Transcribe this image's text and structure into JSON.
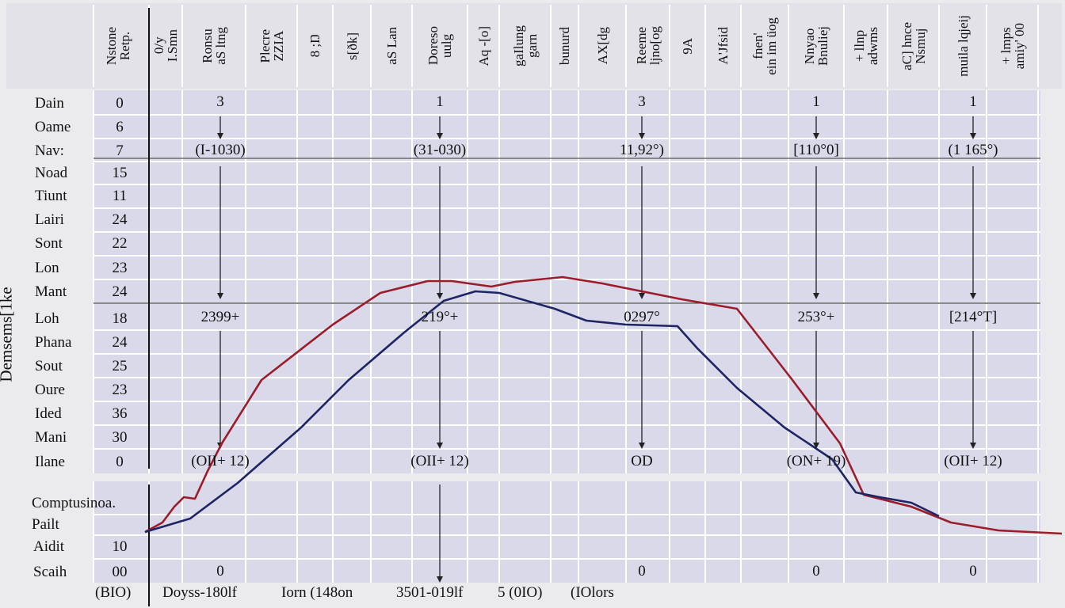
{
  "chart_data": {
    "type": "line",
    "ylabel": "Demsems[1ke",
    "grid": true,
    "series_colors": [
      "#9b1c2a",
      "#1e2464"
    ],
    "column_headers": [
      "Nstone\nRetp.",
      "0/y\nI.Smn",
      "Ronsu\naS ltng",
      "Plecre\nZZIA",
      "8 ;Ŋ",
      "s[ðk]",
      "aS Lan",
      "Doreso\nuulg",
      "Aq -[o]",
      "gaIlung\ngarn",
      "bunurd",
      "AX[dg",
      "Reeme\nljno[og",
      "9A",
      "A'Jfsid",
      "fnen'\nein im üog",
      "Nnyao\nBnuliej",
      "+ llnp\nadwms",
      "aC] hnce\nNsmuj",
      "muila lqjeij",
      "+ lmps\namiy' 00"
    ],
    "rows": [
      {
        "label": "Dain",
        "value": "0"
      },
      {
        "label": "Oame",
        "value": "6"
      },
      {
        "label": "Nav:",
        "value": "7"
      },
      {
        "label": "Noad",
        "value": "15"
      },
      {
        "label": "Tiunt",
        "value": "11"
      },
      {
        "label": "Lairi",
        "value": "24"
      },
      {
        "label": "Sont",
        "value": "22"
      },
      {
        "label": "Lon",
        "value": "23"
      },
      {
        "label": "Mant",
        "value": "24"
      },
      {
        "label": "Loh",
        "value": "18"
      },
      {
        "label": "Phana",
        "value": "24"
      },
      {
        "label": "Sout",
        "value": "25"
      },
      {
        "label": "Oure",
        "value": "23"
      },
      {
        "label": "Ided",
        "value": "36"
      },
      {
        "label": "Mani",
        "value": "30"
      },
      {
        "label": "Ilane",
        "value": "0"
      },
      {
        "label": "Comptusinoa.",
        "value": ""
      },
      {
        "label": "Pailt",
        "value": ""
      },
      {
        "label": "Aidit",
        "value": "10"
      },
      {
        "label": "Scaih",
        "value": "00"
      }
    ],
    "annotations": [
      {
        "top": "3",
        "mid": "(I-1030)",
        "low": "2399+",
        "bottom": "(OII+ 12)",
        "zero": "0"
      },
      {
        "top": "1",
        "mid": "(31-030)",
        "low": "219°+",
        "bottom": "(OII+ 12)",
        "zero": ""
      },
      {
        "top": "3",
        "mid": "11,92°)",
        "low": "0297°",
        "bottom": "OD",
        "zero": "0"
      },
      {
        "top": "1",
        "mid": "[110°0]",
        "low": "253°+",
        "bottom": "(ON+ 19)",
        "zero": "0"
      },
      {
        "top": "1",
        "mid": "(1 165°)",
        "low": "[214°T]",
        "bottom": "(OII+ 12)",
        "zero": "0"
      }
    ],
    "x_labels": [
      "(BIO)",
      "Doyss-180lf",
      "Iorn (148on",
      "3501-019lf",
      "5 (0IO)",
      "(IOlors"
    ]
  }
}
